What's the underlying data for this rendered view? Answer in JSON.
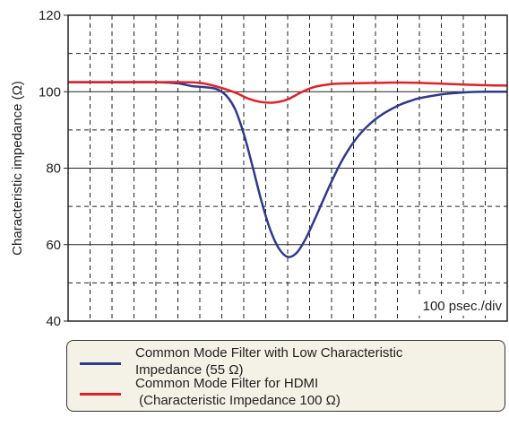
{
  "chart_data": {
    "type": "line",
    "xlabel": "",
    "ylabel": "Characteristic impedance (Ω)",
    "ylim": [
      40,
      120
    ],
    "yticks": [
      40,
      60,
      80,
      100,
      120
    ],
    "xlim": [
      0,
      1
    ],
    "grid": true,
    "annotation": "100 psec./div",
    "series": [
      {
        "name": "Common Mode Filter with Low Characteristic Impedance (55 Ω)",
        "name_lines": [
          "Common Mode Filter with Low Characteristic",
          "Impedance (55 Ω)"
        ],
        "color": "#2e3a8c",
        "x": [
          0,
          0.05,
          0.1,
          0.15,
          0.2,
          0.25,
          0.28,
          0.3,
          0.32,
          0.34,
          0.36,
          0.38,
          0.4,
          0.42,
          0.44,
          0.46,
          0.48,
          0.5,
          0.52,
          0.54,
          0.56,
          0.58,
          0.6,
          0.62,
          0.64,
          0.66,
          0.68,
          0.7,
          0.72,
          0.74,
          0.76,
          0.78,
          0.8,
          0.85,
          0.9,
          0.95,
          1.0
        ],
        "y": [
          102.5,
          102.5,
          102.5,
          102.5,
          102.5,
          102.2,
          101.5,
          101.3,
          101.1,
          100.6,
          99.0,
          95.5,
          89.0,
          80.5,
          71.5,
          64.0,
          59.0,
          56.8,
          57.8,
          61.3,
          66.2,
          71.4,
          76.5,
          81.2,
          85.1,
          88.3,
          90.8,
          92.8,
          94.4,
          95.7,
          96.8,
          97.6,
          98.3,
          99.3,
          99.8,
          100.0,
          100.0
        ]
      },
      {
        "name": "Common Mode Filter for HDMI (Characteristic Impedance 100 Ω)",
        "name_lines": [
          "Common Mode Filter for HDMI",
          " (Characteristic Impedance 100 Ω)"
        ],
        "color": "#e02228",
        "x": [
          0,
          0.05,
          0.1,
          0.15,
          0.2,
          0.25,
          0.3,
          0.34,
          0.38,
          0.41,
          0.44,
          0.47,
          0.5,
          0.53,
          0.56,
          0.6,
          0.65,
          0.7,
          0.75,
          0.8,
          0.85,
          0.9,
          0.95,
          1.0
        ],
        "y": [
          102.5,
          102.5,
          102.5,
          102.5,
          102.5,
          102.5,
          102.3,
          101.3,
          99.8,
          98.2,
          97.3,
          97.2,
          98.0,
          99.8,
          101.2,
          102.0,
          102.2,
          102.3,
          102.4,
          102.3,
          102.1,
          101.9,
          101.7,
          101.6
        ]
      }
    ]
  }
}
